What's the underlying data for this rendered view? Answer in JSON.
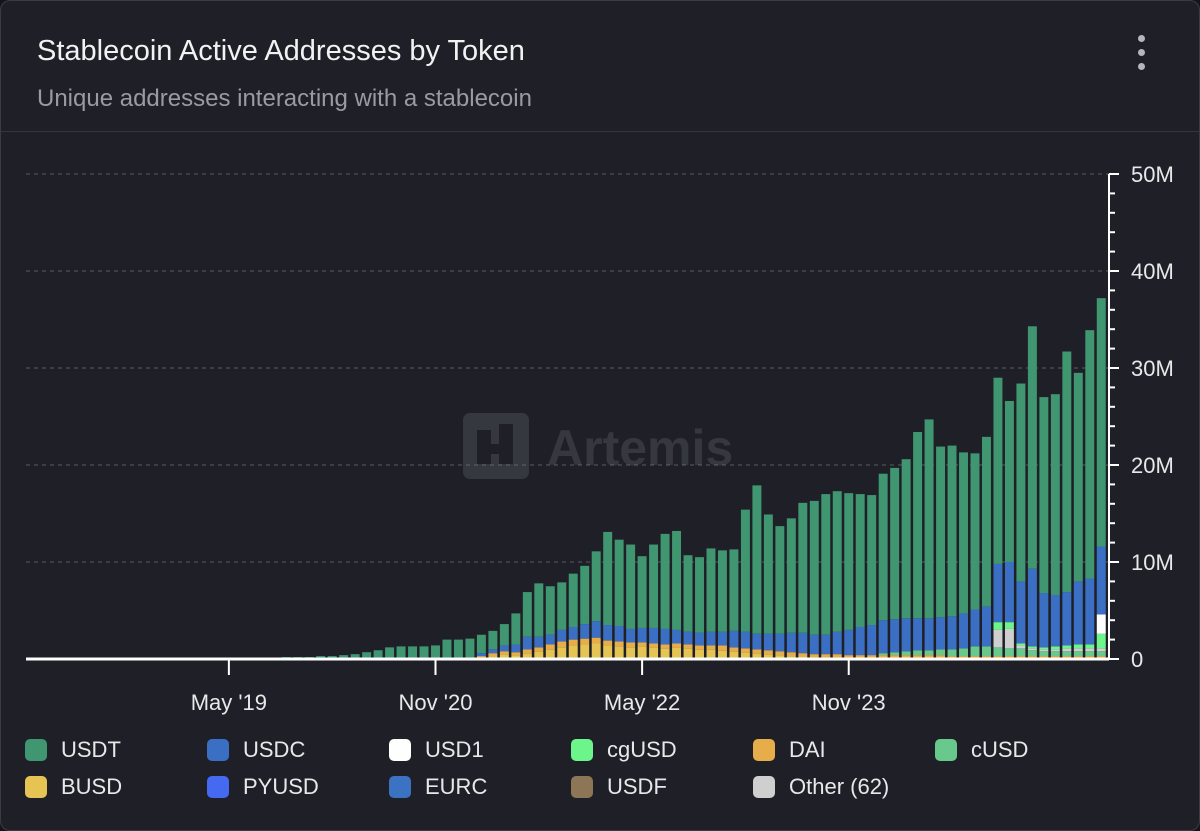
{
  "card": {
    "title": "Stablecoin Active Addresses by Token",
    "subtitle": "Unique addresses interacting with a stablecoin",
    "menu_icon": "kebab-menu-icon",
    "watermark": "Artemis"
  },
  "colors": {
    "background": "#1f2027",
    "grid": "#5a5c64",
    "axis": "#ffffff",
    "USDT": "#3f9670",
    "USDC": "#3b6fc4",
    "USD1": "#ffffff",
    "cgUSD": "#6cf58a",
    "DAI": "#e8ad4b",
    "cUSD": "#69c98c",
    "BUSD": "#e6c453",
    "PYUSD": "#4569f0",
    "EURC": "#3c72c2",
    "USDF": "#8c7656",
    "Other (62)": "#cfcfcf"
  },
  "legend": [
    {
      "label": "USDT",
      "color": "#3f9670"
    },
    {
      "label": "USDC",
      "color": "#3b6fc4"
    },
    {
      "label": "USD1",
      "color": "#ffffff"
    },
    {
      "label": "cgUSD",
      "color": "#6cf58a"
    },
    {
      "label": "DAI",
      "color": "#e8ad4b"
    },
    {
      "label": "cUSD",
      "color": "#69c98c"
    },
    {
      "label": "BUSD",
      "color": "#e6c453"
    },
    {
      "label": "PYUSD",
      "color": "#4569f0"
    },
    {
      "label": "EURC",
      "color": "#3c72c2"
    },
    {
      "label": "USDF",
      "color": "#8c7656"
    },
    {
      "label": "Other (62)",
      "color": "#cfcfcf"
    }
  ],
  "chart_data": {
    "type": "bar",
    "stacked": true,
    "title": "Stablecoin Active Addresses by Token",
    "subtitle": "Unique addresses interacting with a stablecoin",
    "xlabel": "",
    "ylabel": "",
    "x_start": "2017-12",
    "x_interval": "monthly",
    "months": 94,
    "x_tick_labels": [
      {
        "label": "May '19",
        "index": 17
      },
      {
        "label": "Nov '20",
        "index": 35
      },
      {
        "label": "May '22",
        "index": 53
      },
      {
        "label": "Nov '23",
        "index": 71
      }
    ],
    "y_axis": {
      "position": "right",
      "min": 0,
      "max": 50,
      "unit": "M",
      "ticks": [
        "0",
        "10M",
        "20M",
        "30M",
        "40M",
        "50M"
      ],
      "tick_values": [
        0,
        10,
        20,
        30,
        40,
        50
      ],
      "grid": true
    },
    "series": [
      {
        "name": "BUSD",
        "values": [
          0,
          0,
          0,
          0,
          0,
          0,
          0,
          0,
          0,
          0,
          0,
          0,
          0,
          0,
          0,
          0,
          0,
          0,
          0,
          0,
          0,
          0,
          0,
          0,
          0,
          0,
          0,
          0,
          0,
          0,
          0,
          0,
          0,
          0,
          0,
          0,
          0,
          0,
          0,
          0.1,
          0.3,
          0.5,
          0.4,
          0.6,
          0.8,
          1.0,
          1.2,
          1.4,
          1.5,
          1.6,
          1.4,
          1.3,
          1.2,
          1.3,
          1.2,
          1.1,
          1.2,
          1.1,
          1.0,
          1.0,
          0.9,
          0.8,
          0.7,
          0.6,
          0.5,
          0.4,
          0.3,
          0.3,
          0.2,
          0.2,
          0.2,
          0.1,
          0.1,
          0.1,
          0.1,
          0.1,
          0.1,
          0.1,
          0.1,
          0.1,
          0,
          0,
          0,
          0,
          0,
          0,
          0,
          0,
          0,
          0,
          0,
          0,
          0,
          0
        ]
      },
      {
        "name": "DAI",
        "values": [
          0,
          0,
          0,
          0,
          0,
          0,
          0,
          0,
          0,
          0,
          0,
          0,
          0,
          0,
          0,
          0,
          0,
          0,
          0,
          0,
          0,
          0,
          0,
          0,
          0,
          0,
          0,
          0,
          0,
          0,
          0,
          0,
          0,
          0,
          0,
          0,
          0,
          0,
          0.1,
          0.2,
          0.3,
          0.3,
          0.3,
          0.4,
          0.4,
          0.5,
          0.6,
          0.6,
          0.6,
          0.6,
          0.5,
          0.5,
          0.5,
          0.4,
          0.4,
          0.4,
          0.4,
          0.4,
          0.4,
          0.4,
          0.5,
          0.4,
          0.4,
          0.4,
          0.4,
          0.4,
          0.4,
          0.3,
          0.3,
          0.3,
          0.3,
          0.3,
          0.3,
          0.3,
          0.3,
          0.3,
          0.3,
          0.3,
          0.3,
          0.3,
          0.3,
          0.3,
          0.3,
          0.3,
          0.3,
          0.3,
          0.3,
          0.3,
          0.3,
          0.3,
          0.3,
          0.3,
          0.3,
          0.3
        ]
      },
      {
        "name": "cUSD",
        "values": [
          0,
          0,
          0,
          0,
          0,
          0,
          0,
          0,
          0,
          0,
          0,
          0,
          0,
          0,
          0,
          0,
          0,
          0,
          0,
          0,
          0,
          0,
          0,
          0,
          0,
          0,
          0,
          0,
          0,
          0,
          0,
          0,
          0,
          0,
          0,
          0,
          0,
          0,
          0,
          0,
          0,
          0,
          0,
          0,
          0,
          0,
          0,
          0,
          0,
          0,
          0,
          0,
          0,
          0,
          0,
          0,
          0,
          0,
          0,
          0,
          0,
          0,
          0,
          0,
          0,
          0,
          0,
          0,
          0,
          0,
          0,
          0,
          0,
          0,
          0.2,
          0.3,
          0.4,
          0.5,
          0.5,
          0.6,
          0.7,
          0.8,
          1.0,
          1.0,
          0.9,
          0.8,
          0.8,
          0.6,
          0.5,
          0.5,
          0.5,
          0.5,
          0.5,
          0.5
        ]
      },
      {
        "name": "Other (62)",
        "values": [
          0,
          0,
          0,
          0,
          0,
          0,
          0,
          0,
          0,
          0,
          0,
          0,
          0,
          0,
          0,
          0,
          0,
          0,
          0,
          0,
          0,
          0,
          0,
          0,
          0,
          0,
          0,
          0,
          0,
          0,
          0,
          0,
          0,
          0,
          0,
          0,
          0,
          0,
          0,
          0,
          0,
          0,
          0,
          0,
          0,
          0,
          0,
          0,
          0,
          0,
          0,
          0,
          0,
          0,
          0,
          0,
          0,
          0,
          0,
          0,
          0,
          0,
          0,
          0,
          0,
          0,
          0,
          0,
          0,
          0,
          0,
          0,
          0,
          0,
          0,
          0,
          0,
          0,
          0,
          0,
          0,
          0,
          0,
          0,
          1.8,
          2.0,
          0.3,
          0.2,
          0.2,
          0.2,
          0.3,
          0.3,
          0.3,
          0.3
        ]
      },
      {
        "name": "cgUSD",
        "values": [
          0,
          0,
          0,
          0,
          0,
          0,
          0,
          0,
          0,
          0,
          0,
          0,
          0,
          0,
          0,
          0,
          0,
          0,
          0,
          0,
          0,
          0,
          0,
          0,
          0,
          0,
          0,
          0,
          0,
          0,
          0,
          0,
          0,
          0,
          0,
          0,
          0,
          0,
          0,
          0,
          0,
          0,
          0,
          0,
          0,
          0,
          0,
          0,
          0,
          0,
          0,
          0,
          0,
          0,
          0,
          0,
          0,
          0,
          0,
          0,
          0,
          0,
          0,
          0,
          0,
          0,
          0,
          0,
          0,
          0,
          0,
          0,
          0,
          0,
          0,
          0,
          0,
          0,
          0,
          0,
          0,
          0,
          0,
          0,
          0.8,
          0.7,
          0.2,
          0.2,
          0.2,
          0.3,
          0.3,
          0.4,
          0.4,
          1.5
        ]
      },
      {
        "name": "USD1",
        "values": [
          0,
          0,
          0,
          0,
          0,
          0,
          0,
          0,
          0,
          0,
          0,
          0,
          0,
          0,
          0,
          0,
          0,
          0,
          0,
          0,
          0,
          0,
          0,
          0,
          0,
          0,
          0,
          0,
          0,
          0,
          0,
          0,
          0,
          0,
          0,
          0,
          0,
          0,
          0,
          0,
          0,
          0,
          0,
          0,
          0,
          0,
          0,
          0,
          0,
          0,
          0,
          0,
          0,
          0,
          0,
          0,
          0,
          0,
          0,
          0,
          0,
          0,
          0,
          0,
          0,
          0,
          0,
          0,
          0,
          0,
          0,
          0,
          0,
          0,
          0,
          0,
          0,
          0,
          0,
          0,
          0,
          0,
          0,
          0,
          0,
          0,
          0,
          0,
          0,
          0,
          0,
          0,
          0,
          2.0
        ]
      },
      {
        "name": "USDC",
        "values": [
          0,
          0,
          0,
          0,
          0,
          0,
          0,
          0,
          0,
          0,
          0,
          0,
          0,
          0,
          0,
          0,
          0,
          0,
          0,
          0,
          0,
          0,
          0,
          0,
          0,
          0,
          0,
          0,
          0,
          0,
          0,
          0,
          0,
          0,
          0,
          0,
          0,
          0,
          0,
          0.3,
          0.4,
          0.6,
          0.8,
          1.3,
          1.1,
          1.0,
          1.2,
          1.3,
          1.5,
          1.7,
          1.6,
          1.6,
          1.4,
          1.5,
          1.6,
          1.6,
          1.4,
          1.3,
          1.3,
          1.4,
          1.4,
          1.7,
          1.7,
          1.6,
          1.7,
          1.8,
          2.0,
          2.1,
          2.0,
          2.0,
          2.3,
          2.6,
          2.9,
          3.1,
          3.4,
          3.4,
          3.4,
          3.3,
          3.3,
          3.3,
          3.4,
          3.6,
          3.8,
          4.1,
          6.0,
          6.2,
          6.4,
          8.0,
          5.6,
          5.3,
          5.5,
          6.5,
          6.8,
          7.0
        ]
      },
      {
        "name": "USDT",
        "values": [
          0,
          0,
          0,
          0,
          0,
          0,
          0,
          0,
          0,
          0,
          0,
          0,
          0,
          0,
          0,
          0,
          0,
          0,
          0,
          0,
          0,
          0,
          0.2,
          0.2,
          0.2,
          0.3,
          0.3,
          0.4,
          0.5,
          0.7,
          0.9,
          1.2,
          1.3,
          1.3,
          1.3,
          1.4,
          2.0,
          2.0,
          2.0,
          1.9,
          1.9,
          2.2,
          3.2,
          4.6,
          5.5,
          5.0,
          4.9,
          5.5,
          6.0,
          7.2,
          9.6,
          8.9,
          8.7,
          7.4,
          8.6,
          9.8,
          10.2,
          7.9,
          7.8,
          8.6,
          8.4,
          8.4,
          12.6,
          15.3,
          12.3,
          11.1,
          11.8,
          13.4,
          13.8,
          14.5,
          14.5,
          14.1,
          13.7,
          13.4,
          15.1,
          15.6,
          16.4,
          19.2,
          20.5,
          17.6,
          17.6,
          16.6,
          16.1,
          17.5,
          19.2,
          16.6,
          20.4,
          25.0,
          20.2,
          20.7,
          24.8,
          21.5,
          25.6,
          25.6
        ]
      }
    ],
    "stack_order": [
      "BUSD",
      "DAI",
      "cUSD",
      "Other (62)",
      "cgUSD",
      "USD1",
      "USDC",
      "USDT"
    ]
  }
}
